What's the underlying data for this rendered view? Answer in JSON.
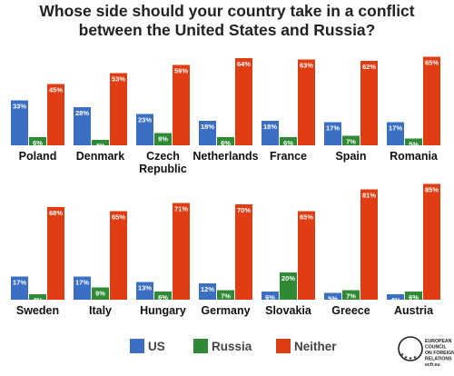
{
  "title": {
    "line1": "Whose side should your country take in a conflict",
    "line2": "between the United States and Russia?"
  },
  "colors": {
    "US": "#3a6fc4",
    "Russia": "#2f8a35",
    "Neither": "#e03d14"
  },
  "chart_data": {
    "type": "bar",
    "title": "Whose side should your country take in a conflict between the United States and Russia?",
    "series_names": [
      "US",
      "Russia",
      "Neither"
    ],
    "ylim": [
      0,
      100
    ],
    "panels": [
      {
        "categories": [
          "Poland",
          "Denmark",
          "Czech Republic",
          "Netherlands",
          "France",
          "Spain",
          "Romania"
        ],
        "series": [
          {
            "name": "US",
            "values": [
              33,
              28,
              23,
              18,
              18,
              17,
              17
            ]
          },
          {
            "name": "Russia",
            "values": [
              6,
              4,
              9,
              6,
              6,
              7,
              5
            ]
          },
          {
            "name": "Neither",
            "values": [
              45,
              53,
              59,
              64,
              63,
              62,
              65
            ]
          }
        ]
      },
      {
        "categories": [
          "Sweden",
          "Italy",
          "Hungary",
          "Germany",
          "Slovakia",
          "Greece",
          "Austria"
        ],
        "series": [
          {
            "name": "US",
            "values": [
              17,
              17,
              13,
              12,
              6,
              5,
              4
            ]
          },
          {
            "name": "Russia",
            "values": [
              4,
              9,
              6,
              7,
              20,
              7,
              6
            ]
          },
          {
            "name": "Neither",
            "values": [
              68,
              65,
              71,
              70,
              65,
              81,
              85
            ]
          }
        ]
      }
    ],
    "legend": [
      "US",
      "Russia",
      "Neither"
    ],
    "legend_position": "bottom-center"
  },
  "logo": {
    "lines": [
      "EUROPEAN",
      "COUNCIL",
      "ON FOREIGN",
      "RELATIONS",
      "ecfr.eu"
    ]
  }
}
